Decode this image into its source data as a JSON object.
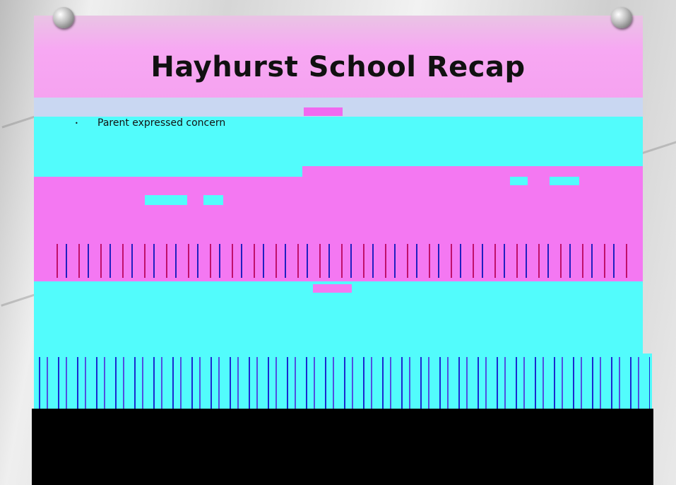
{
  "slide": {
    "title": "Hayhurst School Recap",
    "bullets": [
      "Parent expressed concern"
    ]
  }
}
